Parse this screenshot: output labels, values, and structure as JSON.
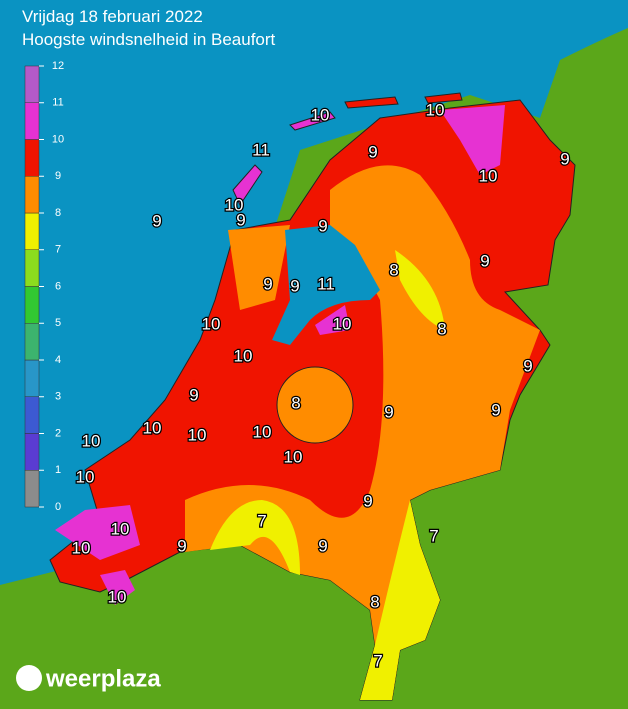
{
  "header": {
    "title": "Vrijdag 18 februari 2022",
    "subtitle": "Hoogste windsnelheid in Beaufort"
  },
  "legend": {
    "ticks": [
      0,
      1,
      2,
      3,
      4,
      5,
      6,
      7,
      8,
      9,
      10,
      11,
      12
    ],
    "colors": [
      "#8c8c8c",
      "#5a3cd2",
      "#3c5ad2",
      "#2896c8",
      "#3cb46e",
      "#32c832",
      "#8cdc1e",
      "#f0f000",
      "#ff8c00",
      "#f01400",
      "#e632d2",
      "#b45ac8"
    ]
  },
  "map": {
    "labels": [
      10,
      10,
      11,
      9,
      9,
      10,
      9,
      10,
      9,
      9,
      9,
      8,
      9,
      9,
      11,
      10,
      8,
      10,
      10,
      9,
      9,
      8,
      9,
      9,
      10,
      10,
      10,
      10,
      10,
      10,
      9,
      7,
      10,
      7,
      10,
      9,
      9,
      8,
      10,
      7
    ]
  },
  "logo": {
    "text": "weerplaza"
  }
}
